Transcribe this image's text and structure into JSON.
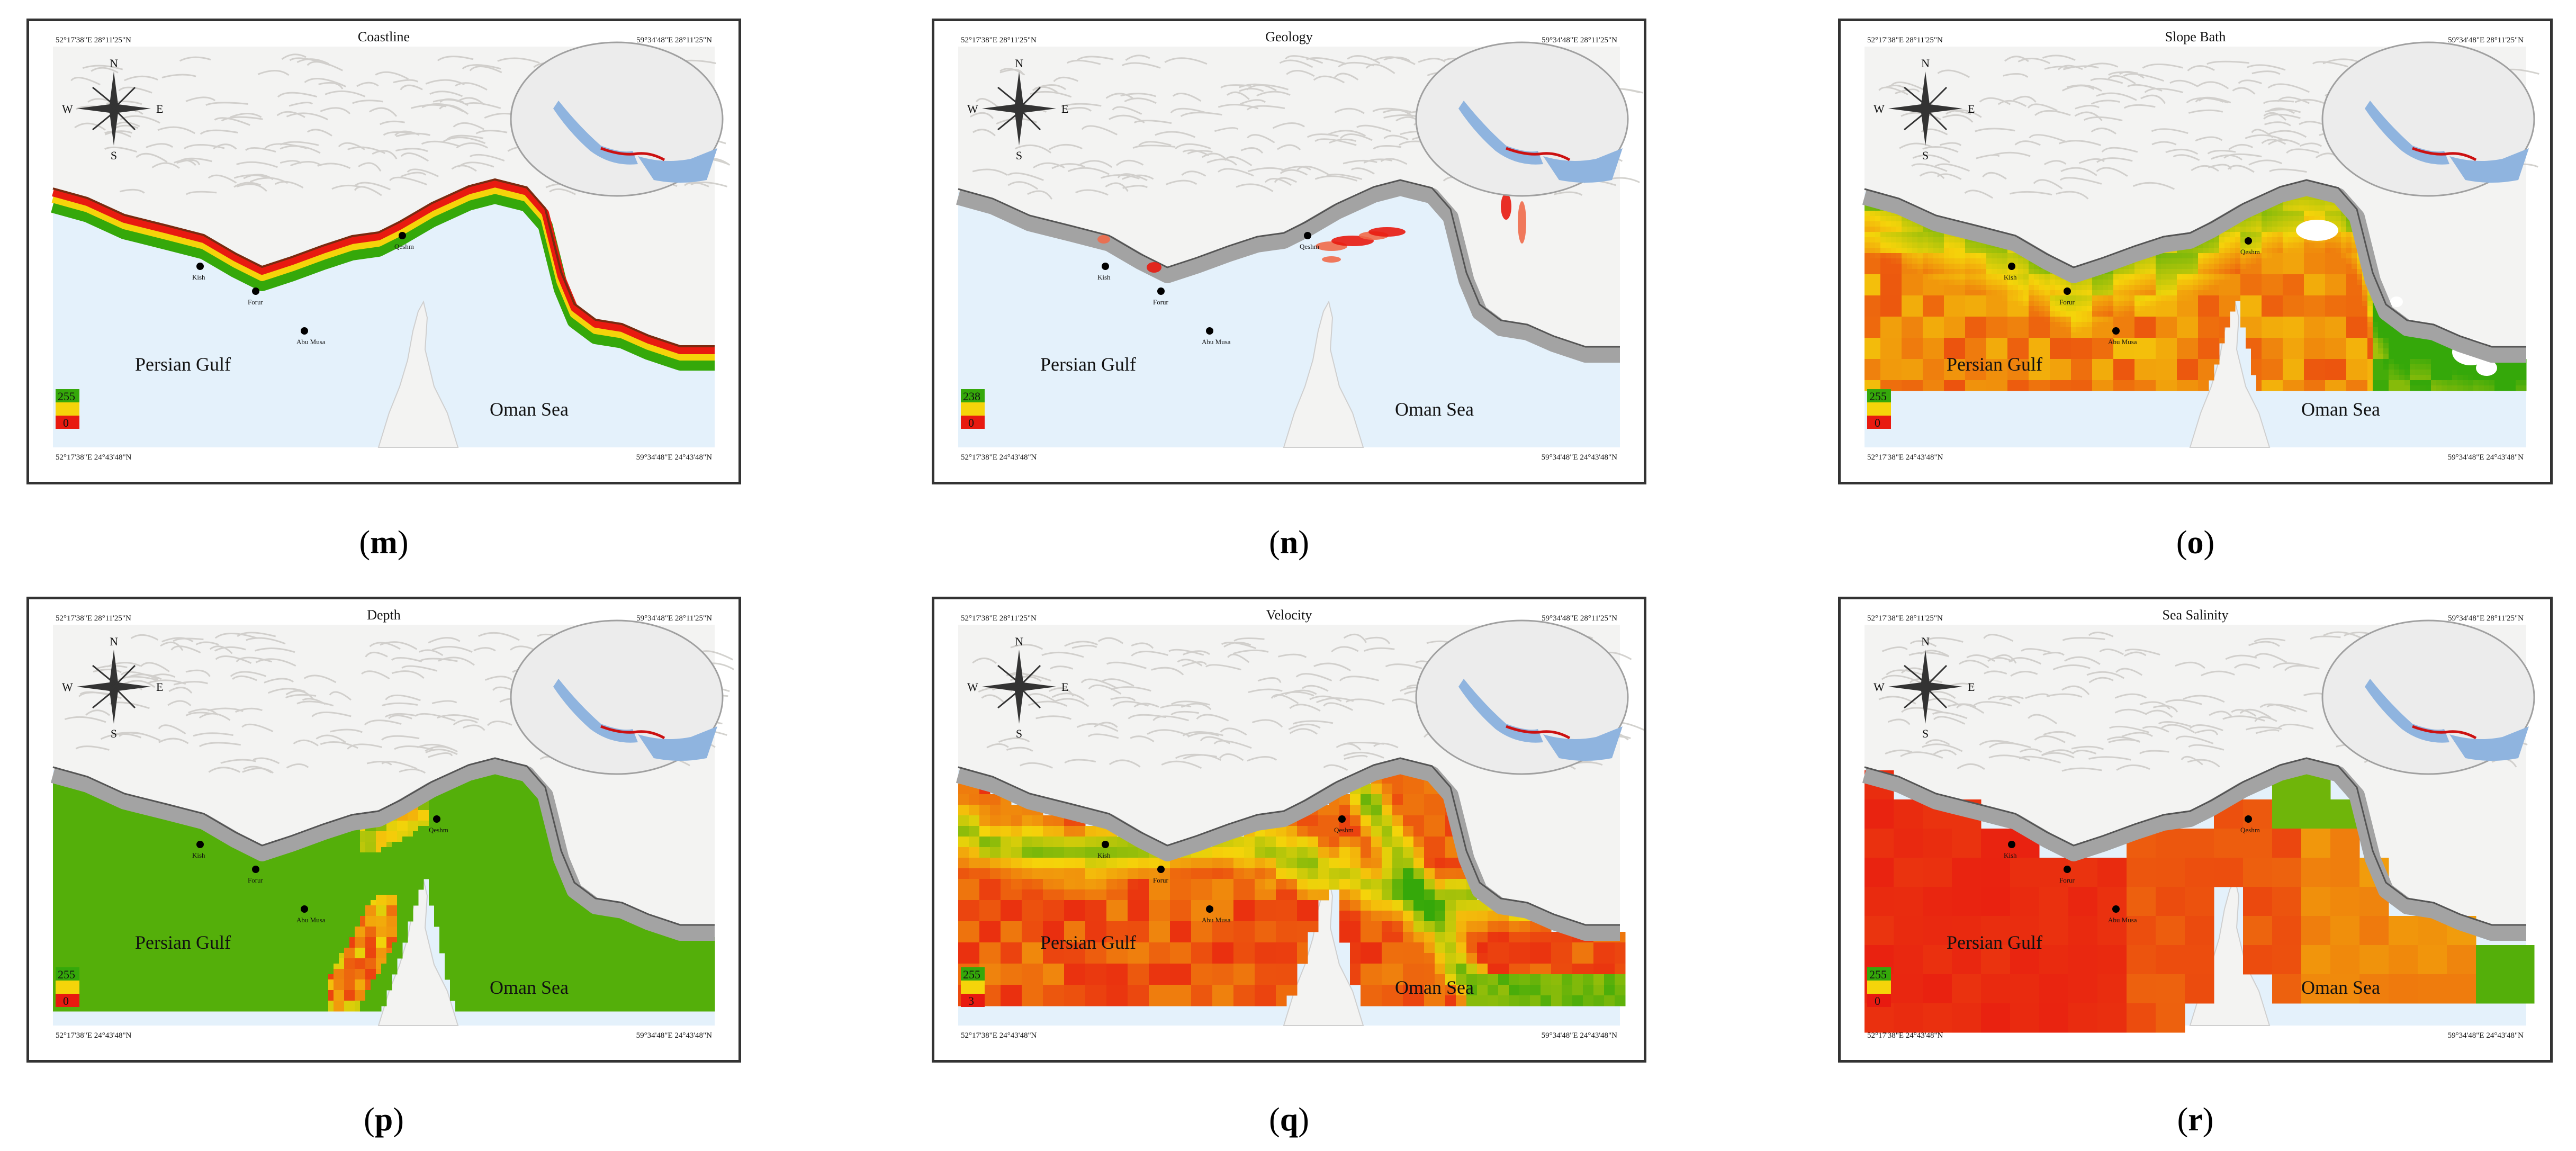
{
  "coords": {
    "top_left": "52°17'38\"E 28°11'25\"N",
    "top_right": "59°34'48\"E 28°11'25\"N",
    "bottom_left": "52°17'38\"E 24°43'48\"N",
    "bottom_right": "59°34'48\"E 24°43'48\"N"
  },
  "compass": {
    "n": "N",
    "s": "S",
    "e": "E",
    "w": "W"
  },
  "places": {
    "persian_gulf": "Persian Gulf",
    "oman_sea": "Oman Sea",
    "city_west": "Kish",
    "city_mid": "Forur",
    "city_south": "Abu Musa",
    "city_qeshm": "Qeshm"
  },
  "colors": {
    "water": "#e4f1fb",
    "land": "#f3f3f2",
    "coast_band": "#a3a3a3",
    "high": "#35a80a",
    "mid": "#f5d40a",
    "low": "#e81a10",
    "frame": "#333333"
  },
  "panels": [
    {
      "letter": "m",
      "title": "Coastline",
      "legend_max": "255",
      "legend_min": "0"
    },
    {
      "letter": "n",
      "title": "Geology",
      "legend_max": "238",
      "legend_min": "0"
    },
    {
      "letter": "o",
      "title": "Slope Bath",
      "legend_max": "255",
      "legend_min": "0"
    },
    {
      "letter": "p",
      "title": "Depth",
      "legend_max": "255",
      "legend_min": "0"
    },
    {
      "letter": "q",
      "title": "Velocity",
      "legend_max": "255",
      "legend_min": "3"
    },
    {
      "letter": "r",
      "title": "Sea Salinity",
      "legend_max": "255",
      "legend_min": "0"
    }
  ]
}
